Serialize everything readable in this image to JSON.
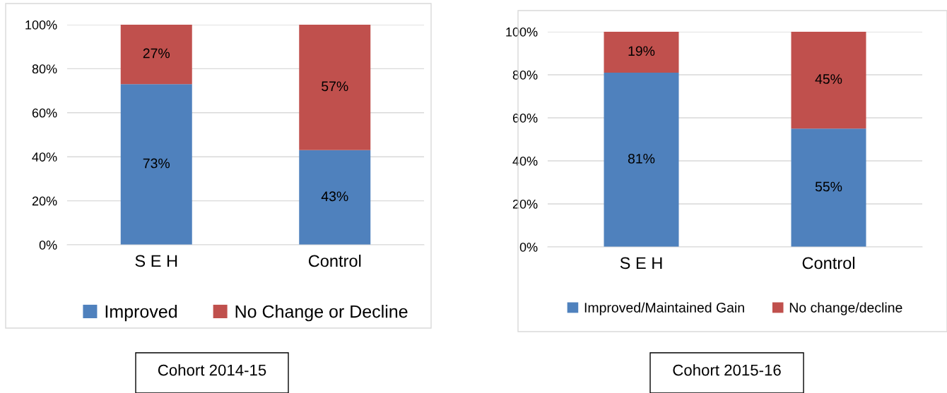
{
  "chart_data": [
    {
      "type": "bar",
      "stacked": true,
      "categories": [
        "S E H",
        "Control"
      ],
      "series": [
        {
          "name": "Improved",
          "color": "#4f81bd",
          "values": [
            73,
            43
          ],
          "value_labels": [
            "73%",
            "43%"
          ]
        },
        {
          "name": "No Change or Decline",
          "color": "#c0504d",
          "values": [
            27,
            57
          ],
          "value_labels": [
            "27%",
            "57%"
          ]
        }
      ],
      "ylim": [
        0,
        100
      ],
      "yticks": [
        {
          "value": 0,
          "label": "0%"
        },
        {
          "value": 20,
          "label": "20%"
        },
        {
          "value": 40,
          "label": "40%"
        },
        {
          "value": 60,
          "label": "60%"
        },
        {
          "value": 80,
          "label": "80%"
        },
        {
          "value": 100,
          "label": "100%"
        }
      ],
      "grid": "y",
      "legend": "bottom",
      "annotations": [
        "Cohort 2014-15"
      ]
    },
    {
      "type": "bar",
      "stacked": true,
      "categories": [
        "S E H",
        "Control"
      ],
      "series": [
        {
          "name": "Improved/Maintained Gain",
          "color": "#4f81bd",
          "values": [
            81,
            55
          ],
          "value_labels": [
            "81%",
            "55%"
          ]
        },
        {
          "name": "No change/decline",
          "color": "#c0504d",
          "values": [
            19,
            45
          ],
          "value_labels": [
            "19%",
            "45%"
          ]
        }
      ],
      "ylim": [
        0,
        100
      ],
      "yticks": [
        {
          "value": 0,
          "label": "0%"
        },
        {
          "value": 20,
          "label": "20%"
        },
        {
          "value": 40,
          "label": "40%"
        },
        {
          "value": 60,
          "label": "60%"
        },
        {
          "value": 80,
          "label": "80%"
        },
        {
          "value": 100,
          "label": "100%"
        }
      ],
      "grid": "y",
      "legend": "bottom",
      "annotations": [
        "Cohort 2015-16"
      ]
    }
  ]
}
